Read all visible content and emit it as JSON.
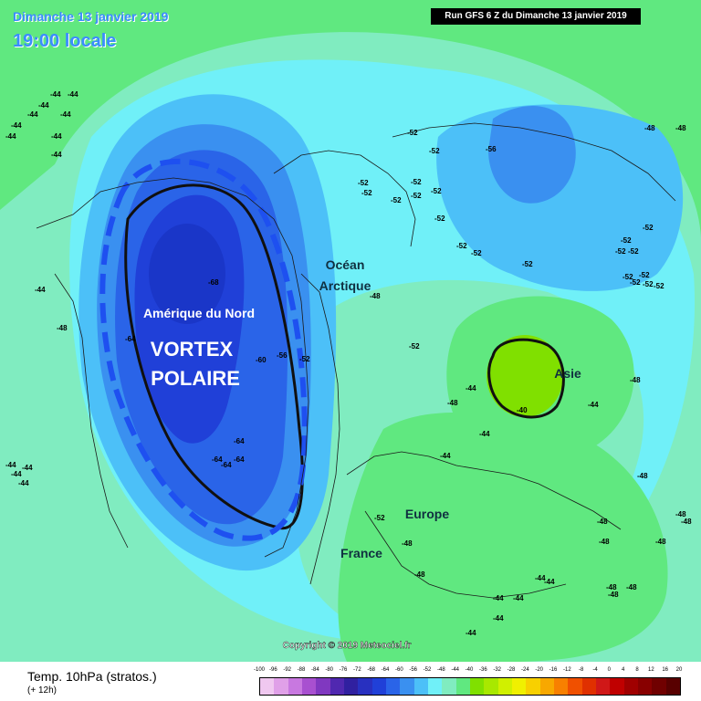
{
  "header": {
    "date": "Dimanche 13 janvier 2019",
    "time": "19:00 locale",
    "run": "Run GFS 6 Z du Dimanche 13 janvier 2019"
  },
  "map": {
    "labels": {
      "north_america": "Amérique du Nord",
      "vortex_line1": "VORTEX",
      "vortex_line2": "POLAIRE",
      "ocean_line1": "Océan",
      "ocean_line2": "Arctique",
      "asia": "Asie",
      "europe": "Europe",
      "france": "France"
    },
    "copyright": "Copyright © 2019 Meteociel.fr",
    "isotherm_values": [
      "-44",
      "-44",
      "-44",
      "-44",
      "-44",
      "-44",
      "-44",
      "-44",
      "-44",
      "-44",
      "-44",
      "-48",
      "-44",
      "-44",
      "-44",
      "-68",
      "-64",
      "-60",
      "-56",
      "-52",
      "-64",
      "-64",
      "-64",
      "-64",
      "-48",
      "-52",
      "-52",
      "-52",
      "-52",
      "-52",
      "-52",
      "-52",
      "-52",
      "-52",
      "-56",
      "-52",
      "-52",
      "-52",
      "-52",
      "-52",
      "-52",
      "-52",
      "-52",
      "-52",
      "-52",
      "-52",
      "-52",
      "-48",
      "-48",
      "-52",
      "-48",
      "-44",
      "-44",
      "-44",
      "-40",
      "-44",
      "-48",
      "-48",
      "-48",
      "-48",
      "-48",
      "-48",
      "-48",
      "-48",
      "-48",
      "-48",
      "-48",
      "-44",
      "-44",
      "-44",
      "-44",
      "-44",
      "-44",
      "-52",
      "-48"
    ],
    "colors": {
      "t_minus_40": "#80e000",
      "t_minus_44": "#60e880",
      "t_minus_48": "#80ecc0",
      "t_minus_52": "#70f0f8",
      "t_minus_56": "#4cc0f8",
      "t_minus_60": "#3a90f0",
      "t_minus_64": "#2a64e8",
      "t_minus_68": "#2040d8",
      "vortex_outline": "#1e50f0"
    }
  },
  "legend": {
    "title": "Temp. 10hPa (stratos.)",
    "step": "(+ 12h)",
    "scale_values": [
      "-100",
      "-96",
      "-92",
      "-88",
      "-84",
      "-80",
      "-76",
      "-72",
      "-68",
      "-64",
      "-60",
      "-56",
      "-52",
      "-48",
      "-44",
      "-40",
      "-36",
      "-32",
      "-28",
      "-24",
      "-20",
      "-16",
      "-12",
      "-8",
      "-4",
      "0",
      "4",
      "8",
      "12",
      "16",
      "20"
    ],
    "scale_colors": [
      "#f0c8f0",
      "#e0a0e8",
      "#c878e0",
      "#a850d0",
      "#8038c0",
      "#5028b0",
      "#3020a0",
      "#2830c0",
      "#2040d8",
      "#2a64e8",
      "#3a90f0",
      "#4cc0f8",
      "#70f0f8",
      "#80ecc0",
      "#60e880",
      "#80e000",
      "#a8e800",
      "#d0f000",
      "#f0f000",
      "#f8d000",
      "#f8a800",
      "#f88000",
      "#f05000",
      "#e03000",
      "#d01818",
      "#c00000",
      "#a00000",
      "#880000",
      "#700000",
      "#580000"
    ]
  }
}
